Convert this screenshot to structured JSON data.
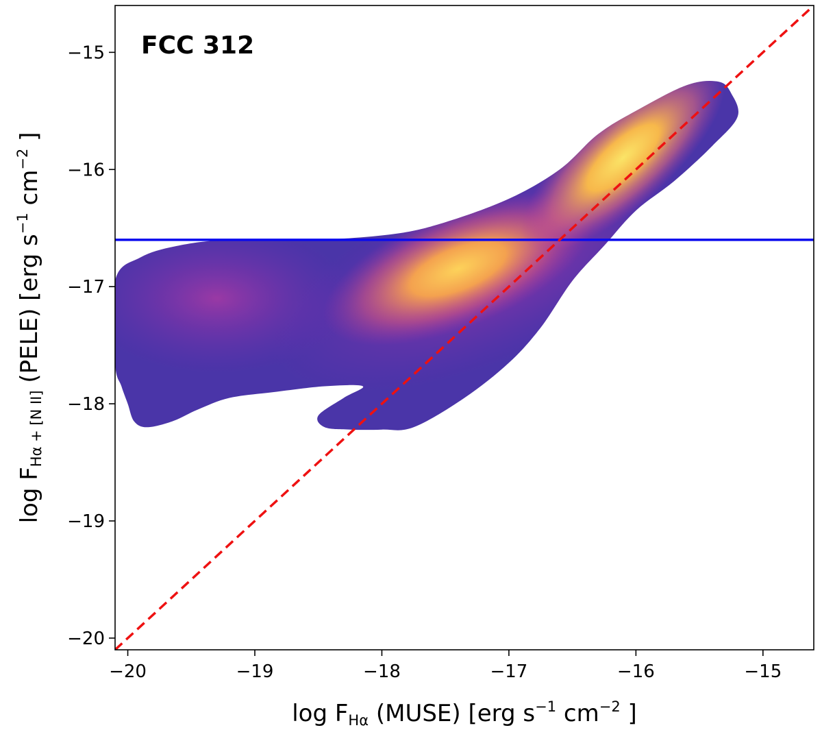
{
  "chart_data": {
    "type": "contour",
    "title": "FCC 312",
    "xlabel": {
      "prefix": "log F",
      "subscript": "Hα",
      "suffix_text": " (MUSE) [erg s",
      "sup1": "−1",
      "mid": " cm",
      "sup2": "−2",
      "end": " ]"
    },
    "ylabel": {
      "prefix": "log F",
      "subscript": "Hα + [N II]",
      "suffix_text": " (PELE) [erg s",
      "sup1": "−1",
      "mid": " cm",
      "sup2": "−2",
      "end": " ]"
    },
    "xlim": [
      -20.1,
      -14.6
    ],
    "ylim": [
      -20.1,
      -14.6
    ],
    "xticks": [
      -20,
      -19,
      -18,
      -17,
      -16,
      -15
    ],
    "yticks": [
      -20,
      -19,
      -18,
      -17,
      -16,
      -15
    ],
    "xtick_labels": [
      "−20",
      "−19",
      "−18",
      "−17",
      "−16",
      "−15"
    ],
    "ytick_labels": [
      "−20",
      "−19",
      "−18",
      "−17",
      "−16",
      "−15"
    ],
    "one_to_one_line": {
      "color": "#ee1111",
      "style": "dashed",
      "from": [
        -20.1,
        -20.1
      ],
      "to": [
        -14.6,
        -14.6
      ]
    },
    "threshold_line": {
      "color": "#0a0aee",
      "y": -16.6
    },
    "density_outline": [
      [
        -20.1,
        -16.95
      ],
      [
        -19.9,
        -16.75
      ],
      [
        -19.6,
        -16.65
      ],
      [
        -19.2,
        -16.6
      ],
      [
        -18.5,
        -16.6
      ],
      [
        -17.9,
        -16.55
      ],
      [
        -17.5,
        -16.45
      ],
      [
        -17.0,
        -16.25
      ],
      [
        -16.6,
        -16.0
      ],
      [
        -16.3,
        -15.7
      ],
      [
        -16.0,
        -15.5
      ],
      [
        -15.6,
        -15.28
      ],
      [
        -15.35,
        -15.25
      ],
      [
        -15.25,
        -15.35
      ],
      [
        -15.2,
        -15.55
      ],
      [
        -15.4,
        -15.8
      ],
      [
        -15.7,
        -16.1
      ],
      [
        -16.0,
        -16.35
      ],
      [
        -16.25,
        -16.65
      ],
      [
        -16.5,
        -16.95
      ],
      [
        -16.75,
        -17.35
      ],
      [
        -17.0,
        -17.65
      ],
      [
        -17.35,
        -17.95
      ],
      [
        -17.75,
        -18.2
      ],
      [
        -18.0,
        -18.22
      ],
      [
        -18.25,
        -18.22
      ],
      [
        -18.45,
        -18.2
      ],
      [
        -18.5,
        -18.1
      ],
      [
        -18.3,
        -17.95
      ],
      [
        -18.15,
        -17.85
      ],
      [
        -18.45,
        -17.85
      ],
      [
        -18.85,
        -17.9
      ],
      [
        -19.2,
        -17.95
      ],
      [
        -19.45,
        -18.05
      ],
      [
        -19.65,
        -18.15
      ],
      [
        -19.85,
        -18.2
      ],
      [
        -19.95,
        -18.15
      ],
      [
        -20.0,
        -18.0
      ],
      [
        -20.05,
        -17.85
      ],
      [
        -20.1,
        -17.65
      ]
    ],
    "density_peak": [
      -16.1,
      -15.9
    ],
    "density_secondary_peak": [
      -17.4,
      -16.85
    ],
    "colormap": "plasma"
  }
}
